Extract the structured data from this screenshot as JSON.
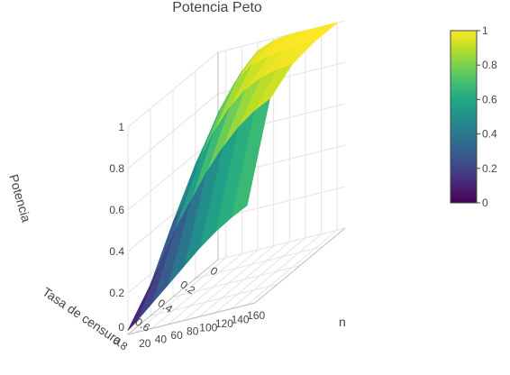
{
  "chart_data": {
    "type": "surface3d",
    "title": "Potencia Peto",
    "axes": {
      "x": {
        "label": "n",
        "ticks": [
          20,
          40,
          60,
          80,
          100,
          120,
          140,
          160
        ],
        "range": [
          10,
          170
        ]
      },
      "y": {
        "label": "Tasa de censura",
        "ticks": [
          0,
          0.2,
          0.4,
          0.6,
          0.8
        ],
        "range": [
          0,
          0.8
        ]
      },
      "z": {
        "label": "Potencia",
        "ticks": [
          0.2,
          0.4,
          0.6,
          0.8,
          1
        ],
        "extra_tick": "0",
        "range": [
          0,
          1
        ]
      }
    },
    "grid": true,
    "colorscale": "viridis",
    "colorbar": {
      "ticks": [
        "0",
        "0.2",
        "0.4",
        "0.6",
        "0.8",
        "1"
      ],
      "range": [
        0,
        1
      ]
    },
    "surface": {
      "n": [
        10,
        20,
        40,
        60,
        80,
        100,
        120,
        140,
        160
      ],
      "tasa_censura": [
        0,
        0.2,
        0.4,
        0.6,
        0.8
      ],
      "potencia": [
        [
          0.7,
          0.75,
          0.88,
          0.96,
          0.99,
          1.0,
          1.0,
          1.0,
          1.0
        ],
        [
          0.55,
          0.62,
          0.78,
          0.9,
          0.96,
          0.98,
          0.99,
          1.0,
          1.0
        ],
        [
          0.36,
          0.42,
          0.6,
          0.74,
          0.84,
          0.91,
          0.95,
          0.97,
          0.98
        ],
        [
          0.15,
          0.22,
          0.38,
          0.5,
          0.62,
          0.72,
          0.8,
          0.86,
          0.9
        ],
        [
          0.02,
          0.05,
          0.12,
          0.19,
          0.26,
          0.33,
          0.39,
          0.44,
          0.48
        ]
      ]
    }
  }
}
